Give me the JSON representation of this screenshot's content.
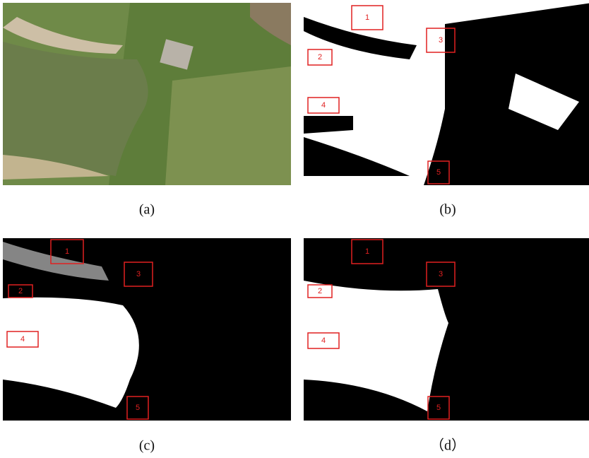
{
  "panels": [
    {
      "caption": "(a)"
    },
    {
      "caption": "(b)",
      "boxes": [
        "1",
        "2",
        "3",
        "4",
        "5"
      ]
    },
    {
      "caption": "(c)",
      "boxes": [
        "1",
        "2",
        "3",
        "4",
        "5"
      ]
    },
    {
      "caption": "（d）",
      "boxes": [
        "1",
        "2",
        "3",
        "4",
        "5"
      ]
    }
  ]
}
